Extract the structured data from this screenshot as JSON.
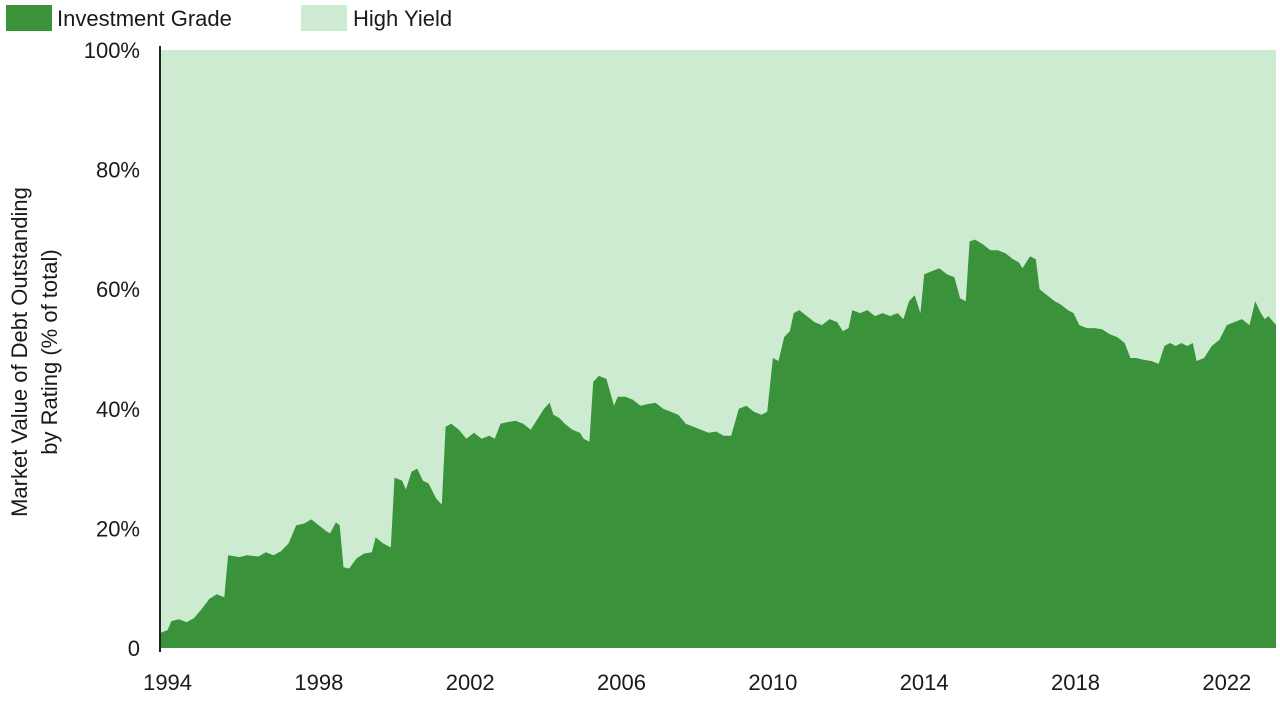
{
  "chart_data": {
    "type": "area",
    "stacked": true,
    "ylabel_lines": [
      "Market Value of Debt Outstanding",
      "by Rating (% of total)"
    ],
    "ylim": [
      0,
      100
    ],
    "y_ticks": [
      0,
      20,
      40,
      60,
      80,
      100
    ],
    "y_tick_labels": [
      "0",
      "20%",
      "40%",
      "60%",
      "80%",
      "100%"
    ],
    "xlim": [
      1993.8,
      2023.3
    ],
    "x_ticks": [
      1994,
      1998,
      2002,
      2006,
      2010,
      2014,
      2018,
      2022
    ],
    "x_tick_labels": [
      "1994",
      "1998",
      "2002",
      "2006",
      "2010",
      "2014",
      "2018",
      "2022"
    ],
    "grid": false,
    "legend_position": "top-left",
    "series": [
      {
        "name": "Investment Grade",
        "color": "#3a933a",
        "points": [
          [
            1993.8,
            2.5
          ],
          [
            1994.0,
            3.0
          ],
          [
            1994.1,
            4.5
          ],
          [
            1994.3,
            4.8
          ],
          [
            1994.5,
            4.3
          ],
          [
            1994.7,
            5.0
          ],
          [
            1994.9,
            6.5
          ],
          [
            1995.1,
            8.2
          ],
          [
            1995.3,
            9.0
          ],
          [
            1995.5,
            8.5
          ],
          [
            1995.6,
            15.5
          ],
          [
            1995.9,
            15.2
          ],
          [
            1996.1,
            15.5
          ],
          [
            1996.4,
            15.3
          ],
          [
            1996.6,
            16.0
          ],
          [
            1996.8,
            15.5
          ],
          [
            1997.0,
            16.2
          ],
          [
            1997.2,
            17.5
          ],
          [
            1997.4,
            20.5
          ],
          [
            1997.6,
            20.8
          ],
          [
            1997.8,
            21.5
          ],
          [
            1998.0,
            20.5
          ],
          [
            1998.2,
            19.5
          ],
          [
            1998.3,
            19.2
          ],
          [
            1998.45,
            21.0
          ],
          [
            1998.55,
            20.5
          ],
          [
            1998.65,
            13.5
          ],
          [
            1998.8,
            13.3
          ],
          [
            1999.0,
            15.0
          ],
          [
            1999.2,
            15.8
          ],
          [
            1999.4,
            16.0
          ],
          [
            1999.5,
            18.5
          ],
          [
            1999.7,
            17.5
          ],
          [
            1999.9,
            16.8
          ],
          [
            2000.0,
            28.5
          ],
          [
            2000.2,
            28.0
          ],
          [
            2000.3,
            26.5
          ],
          [
            2000.45,
            29.5
          ],
          [
            2000.6,
            30.0
          ],
          [
            2000.75,
            28.0
          ],
          [
            2000.9,
            27.5
          ],
          [
            2001.1,
            25.0
          ],
          [
            2001.25,
            24.0
          ],
          [
            2001.35,
            37.0
          ],
          [
            2001.5,
            37.5
          ],
          [
            2001.7,
            36.5
          ],
          [
            2001.9,
            35.0
          ],
          [
            2002.1,
            36.0
          ],
          [
            2002.3,
            35.0
          ],
          [
            2002.5,
            35.5
          ],
          [
            2002.65,
            35.0
          ],
          [
            2002.8,
            37.5
          ],
          [
            2003.0,
            37.8
          ],
          [
            2003.2,
            38.0
          ],
          [
            2003.4,
            37.5
          ],
          [
            2003.6,
            36.5
          ],
          [
            2003.8,
            38.5
          ],
          [
            2003.95,
            40.0
          ],
          [
            2004.1,
            41.0
          ],
          [
            2004.2,
            39.0
          ],
          [
            2004.35,
            38.5
          ],
          [
            2004.5,
            37.5
          ],
          [
            2004.7,
            36.5
          ],
          [
            2004.9,
            36.0
          ],
          [
            2005.0,
            35.0
          ],
          [
            2005.15,
            34.5
          ],
          [
            2005.25,
            44.5
          ],
          [
            2005.4,
            45.5
          ],
          [
            2005.6,
            45.0
          ],
          [
            2005.8,
            40.5
          ],
          [
            2005.9,
            42.0
          ],
          [
            2006.1,
            42.0
          ],
          [
            2006.3,
            41.5
          ],
          [
            2006.5,
            40.5
          ],
          [
            2006.7,
            40.8
          ],
          [
            2006.9,
            41.0
          ],
          [
            2007.1,
            40.0
          ],
          [
            2007.3,
            39.5
          ],
          [
            2007.5,
            39.0
          ],
          [
            2007.7,
            37.5
          ],
          [
            2007.9,
            37.0
          ],
          [
            2008.1,
            36.5
          ],
          [
            2008.3,
            36.0
          ],
          [
            2008.5,
            36.2
          ],
          [
            2008.7,
            35.5
          ],
          [
            2008.9,
            35.5
          ],
          [
            2009.1,
            40.0
          ],
          [
            2009.3,
            40.5
          ],
          [
            2009.5,
            39.5
          ],
          [
            2009.7,
            39.0
          ],
          [
            2009.85,
            39.5
          ],
          [
            2010.0,
            48.5
          ],
          [
            2010.15,
            48.0
          ],
          [
            2010.3,
            52.0
          ],
          [
            2010.45,
            53.0
          ],
          [
            2010.55,
            56.0
          ],
          [
            2010.7,
            56.5
          ],
          [
            2010.9,
            55.5
          ],
          [
            2011.1,
            54.5
          ],
          [
            2011.3,
            54.0
          ],
          [
            2011.5,
            55.0
          ],
          [
            2011.7,
            54.5
          ],
          [
            2011.85,
            53.0
          ],
          [
            2012.0,
            53.5
          ],
          [
            2012.1,
            56.5
          ],
          [
            2012.3,
            56.0
          ],
          [
            2012.5,
            56.5
          ],
          [
            2012.7,
            55.5
          ],
          [
            2012.9,
            56.0
          ],
          [
            2013.1,
            55.5
          ],
          [
            2013.3,
            56.0
          ],
          [
            2013.45,
            55.0
          ],
          [
            2013.6,
            58.0
          ],
          [
            2013.75,
            59.0
          ],
          [
            2013.9,
            56.0
          ],
          [
            2014.0,
            62.5
          ],
          [
            2014.2,
            63.0
          ],
          [
            2014.4,
            63.5
          ],
          [
            2014.6,
            62.5
          ],
          [
            2014.8,
            62.0
          ],
          [
            2014.95,
            58.5
          ],
          [
            2015.1,
            58.0
          ],
          [
            2015.2,
            68.0
          ],
          [
            2015.35,
            68.3
          ],
          [
            2015.55,
            67.5
          ],
          [
            2015.75,
            66.5
          ],
          [
            2015.95,
            66.5
          ],
          [
            2016.15,
            66.0
          ],
          [
            2016.35,
            65.0
          ],
          [
            2016.5,
            64.5
          ],
          [
            2016.6,
            63.5
          ],
          [
            2016.8,
            65.5
          ],
          [
            2016.95,
            65.0
          ],
          [
            2017.05,
            60.0
          ],
          [
            2017.25,
            59.0
          ],
          [
            2017.45,
            58.0
          ],
          [
            2017.6,
            57.5
          ],
          [
            2017.8,
            56.5
          ],
          [
            2017.95,
            56.0
          ],
          [
            2018.1,
            54.0
          ],
          [
            2018.3,
            53.5
          ],
          [
            2018.5,
            53.5
          ],
          [
            2018.7,
            53.3
          ],
          [
            2018.9,
            52.5
          ],
          [
            2019.1,
            52.0
          ],
          [
            2019.3,
            51.0
          ],
          [
            2019.45,
            48.5
          ],
          [
            2019.6,
            48.5
          ],
          [
            2019.8,
            48.2
          ],
          [
            2020.0,
            48.0
          ],
          [
            2020.2,
            47.5
          ],
          [
            2020.35,
            50.5
          ],
          [
            2020.5,
            51.0
          ],
          [
            2020.65,
            50.5
          ],
          [
            2020.8,
            51.0
          ],
          [
            2020.95,
            50.5
          ],
          [
            2021.1,
            51.0
          ],
          [
            2021.2,
            48.0
          ],
          [
            2021.4,
            48.5
          ],
          [
            2021.6,
            50.5
          ],
          [
            2021.8,
            51.5
          ],
          [
            2022.0,
            54.0
          ],
          [
            2022.2,
            54.5
          ],
          [
            2022.4,
            55.0
          ],
          [
            2022.6,
            54.0
          ],
          [
            2022.75,
            58.0
          ],
          [
            2022.9,
            56.0
          ],
          [
            2023.0,
            55.0
          ],
          [
            2023.1,
            55.5
          ],
          [
            2023.3,
            54.0
          ]
        ]
      },
      {
        "name": "High Yield",
        "color": "#cdebd0"
      }
    ]
  }
}
